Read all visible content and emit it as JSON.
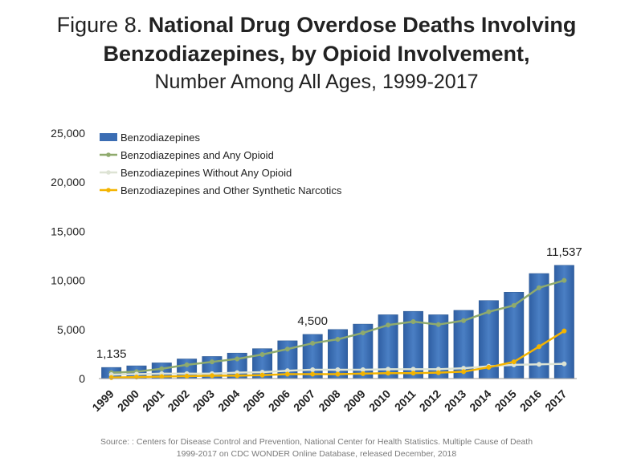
{
  "figure": {
    "title_lead": "Figure 8.",
    "title_main_line1": "National Drug Overdose Deaths Involving",
    "title_main_line2": "Benzodiazepines, by Opioid Involvement,",
    "subtitle": "Number Among All Ages, 1999-2017",
    "source_line1": "Source: : Centers for Disease Control and Prevention, National Center for Health Statistics. Multiple Cause of Death",
    "source_line2": "1999-2017 on CDC WONDER Online Database, released December, 2018"
  },
  "chart_data": {
    "type": "bar",
    "title": "Figure 8. National Drug Overdose Deaths Involving Benzodiazepines, by Opioid Involvement, Number Among All Ages, 1999-2017",
    "xlabel": "",
    "ylabel": "",
    "ylim": [
      0,
      25000
    ],
    "yticks": [
      0,
      5000,
      10000,
      15000,
      20000,
      25000
    ],
    "ytick_labels": [
      "0",
      "5,000",
      "10,000",
      "15,000",
      "20,000",
      "25,000"
    ],
    "grid": false,
    "legend_position": "top-left",
    "categories": [
      "1999",
      "2000",
      "2001",
      "2002",
      "2003",
      "2004",
      "2005",
      "2006",
      "2007",
      "2008",
      "2009",
      "2010",
      "2011",
      "2012",
      "2013",
      "2014",
      "2015",
      "2016",
      "2017"
    ],
    "series": [
      {
        "name": "Benzodiazepines",
        "kind": "bar",
        "color": "#3b6db3",
        "values": [
          1135,
          1300,
          1600,
          2000,
          2250,
          2600,
          3050,
          3850,
          4500,
          5000,
          5550,
          6500,
          6850,
          6500,
          6950,
          7950,
          8800,
          10700,
          11537
        ]
      },
      {
        "name": "Benzodiazepines and Any Opioid",
        "kind": "line",
        "color": "#8faa6d",
        "values": [
          600,
          700,
          1000,
          1400,
          1700,
          2000,
          2450,
          3000,
          3600,
          4000,
          4650,
          5450,
          5800,
          5500,
          5900,
          6800,
          7450,
          9250,
          10000
        ]
      },
      {
        "name": "Benzodiazepines Without Any Opioid",
        "kind": "line",
        "color": "#dde3d4",
        "values": [
          400,
          450,
          500,
          500,
          500,
          600,
          650,
          800,
          900,
          900,
          900,
          950,
          950,
          950,
          1050,
          1250,
          1400,
          1450,
          1500
        ]
      },
      {
        "name": "Benzodiazepines and Other Synthetic Narcotics",
        "kind": "line",
        "color": "#f4b400",
        "values": [
          100,
          150,
          200,
          250,
          300,
          300,
          350,
          450,
          450,
          450,
          500,
          550,
          550,
          600,
          700,
          1150,
          1700,
          3250,
          4850
        ]
      }
    ],
    "annotations": [
      {
        "category": "1999",
        "value": 1135,
        "label": "1,135"
      },
      {
        "category": "2007",
        "value": 4500,
        "label": "4,500"
      },
      {
        "category": "2017",
        "value": 11537,
        "label": "11,537"
      }
    ]
  }
}
